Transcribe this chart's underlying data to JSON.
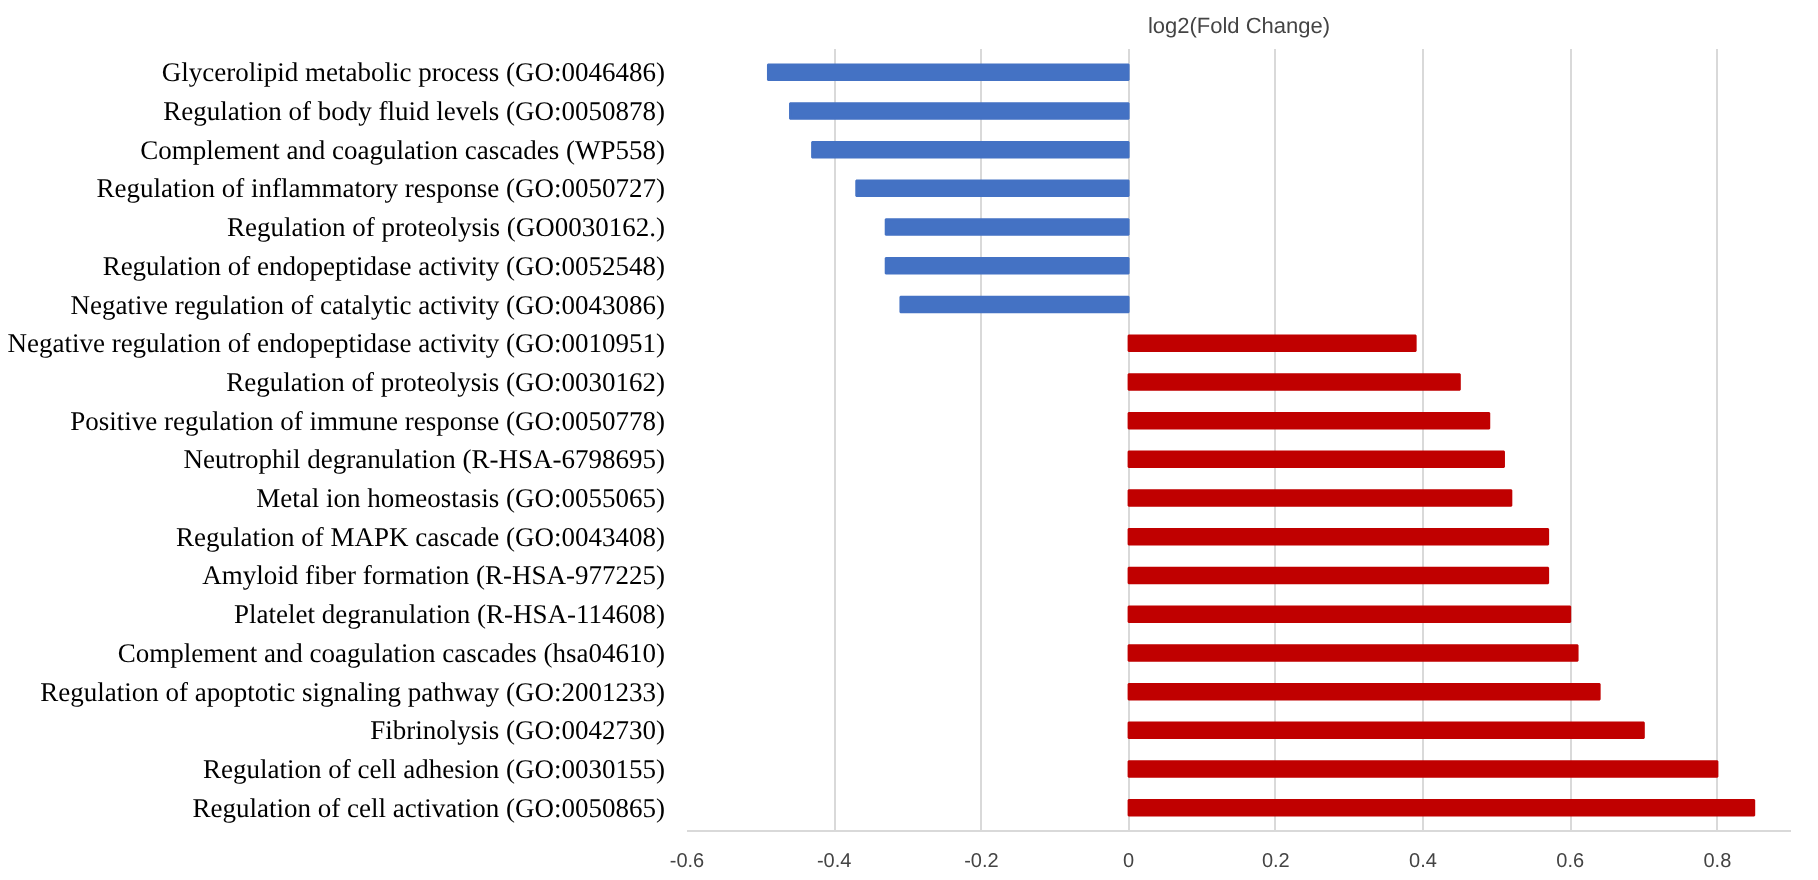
{
  "chart_data": {
    "type": "bar",
    "orientation": "horizontal",
    "title": "log2(Fold Change)",
    "categories": [
      "Glycerolipid metabolic process (GO:0046486)",
      "Regulation of body fluid levels (GO:0050878)",
      "Complement and coagulation cascades (WP558)",
      "Regulation of inflammatory response (GO:0050727)",
      "Regulation of proteolysis (GO0030162.)",
      "Regulation of endopeptidase activity (GO:0052548)",
      "Negative regulation of catalytic activity (GO:0043086)",
      "Negative regulation of endopeptidase activity (GO:0010951)",
      "Regulation of proteolysis (GO:0030162)",
      "Positive regulation of immune response (GO:0050778)",
      "Neutrophil degranulation (R-HSA-6798695)",
      "Metal ion homeostasis (GO:0055065)",
      "Regulation of MAPK cascade (GO:0043408)",
      "Amyloid fiber formation (R-HSA-977225)",
      "Platelet degranulation (R-HSA-114608)",
      "Complement and coagulation cascades (hsa04610)",
      "Regulation of apoptotic signaling pathway (GO:2001233)",
      "Fibrinolysis (GO:0042730)",
      "Regulation of cell adhesion (GO:0030155)",
      "Regulation of cell activation (GO:0050865)"
    ],
    "values": [
      -0.49,
      -0.46,
      -0.43,
      -0.37,
      -0.33,
      -0.33,
      -0.31,
      0.39,
      0.45,
      0.49,
      0.51,
      0.52,
      0.57,
      0.57,
      0.6,
      0.61,
      0.64,
      0.7,
      0.8,
      0.85
    ],
    "colors": [
      "#4472c4",
      "#4472c4",
      "#4472c4",
      "#4472c4",
      "#4472c4",
      "#4472c4",
      "#4472c4",
      "#c00000",
      "#c00000",
      "#c00000",
      "#c00000",
      "#c00000",
      "#c00000",
      "#c00000",
      "#c00000",
      "#c00000",
      "#c00000",
      "#c00000",
      "#c00000",
      "#c00000"
    ],
    "xlim": [
      -0.6,
      0.9
    ],
    "xticks": [
      -0.6,
      -0.4,
      -0.2,
      0,
      0.2,
      0.4,
      0.6,
      0.8
    ],
    "grid": "x"
  }
}
